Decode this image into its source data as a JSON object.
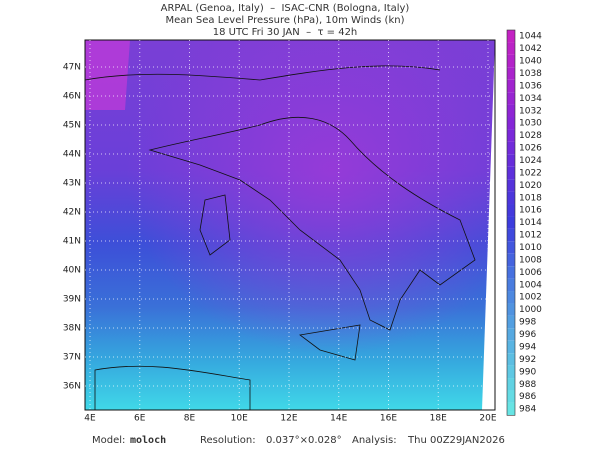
{
  "header": {
    "lines": [
      "ARPAL (Genoa, Italy)  –  ISAC-CNR (Bologna, Italy)",
      "Mean Sea Level Pressure (hPa), 10m Winds (kn)",
      "18 UTC Fri 30 JAN  –  τ = 42h"
    ]
  },
  "map": {
    "lon_labels": [
      "4E",
      "6E",
      "8E",
      "10E",
      "12E",
      "14E",
      "16E",
      "18E",
      "20E"
    ],
    "lat_labels": [
      "47N",
      "46N",
      "45N",
      "44N",
      "43N",
      "42N",
      "41N",
      "40N",
      "39N",
      "38N",
      "37N",
      "36N"
    ]
  },
  "colorbar": {
    "labels": [
      "1044",
      "1042",
      "1040",
      "1038",
      "1036",
      "1034",
      "1032",
      "1030",
      "1028",
      "1026",
      "1024",
      "1022",
      "1020",
      "1018",
      "1016",
      "1014",
      "1012",
      "1010",
      "1008",
      "1006",
      "1004",
      "1002",
      "1000",
      "998",
      "996",
      "994",
      "992",
      "990",
      "988",
      "986",
      "984"
    ]
  },
  "footer": {
    "model_label": "Model:",
    "model": "moloch",
    "resolution_label": "Resolution:",
    "resolution": "0.037°×0.028°",
    "analysis_label": "Analysis:",
    "analysis": "Thu 00Z29JAN2026"
  }
}
